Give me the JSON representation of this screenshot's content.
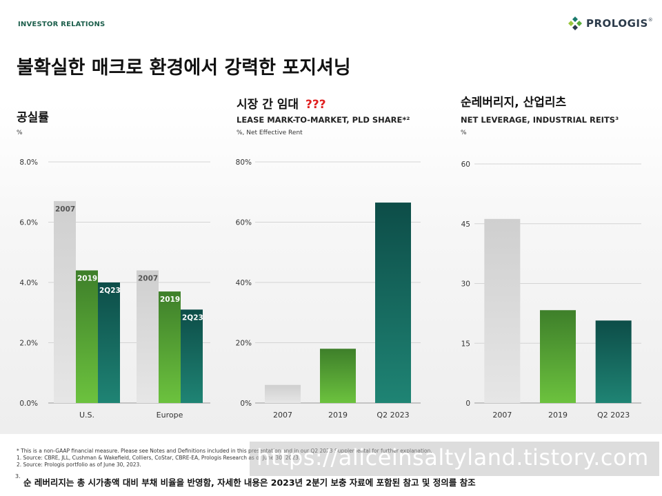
{
  "header": {
    "section": "INVESTOR RELATIONS",
    "logo_text": "PROLOGIS",
    "logo_mark": "®"
  },
  "title": "불확실한 매크로 환경에서 강력한 포지셔닝",
  "colors": {
    "gray": "#c8c8c8",
    "green": "#5aad3a",
    "teal": "#1b7a6c",
    "brand": "#1d5f4c",
    "grid": "#d4d4d4"
  },
  "chart_data": [
    {
      "type": "bar",
      "title": "공실률",
      "subtitle": "",
      "unit": "%",
      "categories": [
        "U.S.",
        "Europe"
      ],
      "series": [
        {
          "name": "2007",
          "values": [
            6.7,
            4.4
          ]
        },
        {
          "name": "2019",
          "values": [
            4.4,
            3.7
          ]
        },
        {
          "name": "2Q23",
          "values": [
            4.0,
            3.1
          ]
        }
      ],
      "ylim": [
        0,
        8
      ],
      "yticks": [
        "0.0%",
        "2.0%",
        "4.0%",
        "6.0%",
        "8.0%"
      ],
      "grid": true
    },
    {
      "type": "bar",
      "title": "시장 간 임대",
      "title_mark": "???",
      "subtitle": "LEASE MARK-TO-MARKET, PLD SHARE*²",
      "unit": "%, Net Effective Rent",
      "categories": [
        "2007",
        "2019",
        "Q2 2023"
      ],
      "values": [
        6,
        18,
        66.5
      ],
      "ylim": [
        0,
        80
      ],
      "yticks": [
        "0%",
        "20%",
        "40%",
        "60%",
        "80%"
      ],
      "grid": true
    },
    {
      "type": "bar",
      "title": "순레버리지, 산업리츠",
      "subtitle": "NET LEVERAGE, INDUSTRIAL REITS³",
      "unit": "%",
      "categories": [
        "2007",
        "2019",
        "Q2 2023"
      ],
      "values": [
        46.2,
        23.3,
        20.7
      ],
      "ylim": [
        0,
        60
      ],
      "yticks": [
        "0",
        "15",
        "30",
        "45",
        "60"
      ],
      "grid": true
    }
  ],
  "footnotes": [
    "* This is a non-GAAP financial measure. Please see Notes and Definitions included in this presentation and in our Q2 2023 Supplemental for further explanation.",
    "1.   Source: CBRE, JLL, Cushman & Wakefield, Colliers, CoStar, CBRE-EA, Prologis Research as of June 30, 2023.",
    "2.   Source: Prologis portfolio as of June 30, 2023.",
    "3."
  ],
  "watermark": "https://aliceinsaltyland.tistory.com",
  "note": "순 레버리지는 총 시가총액 대비 부채 비율을 반영함,  자세한 내용은 2023년 2분기 보충 자료에 포함된 참고 및 정의를 참조"
}
